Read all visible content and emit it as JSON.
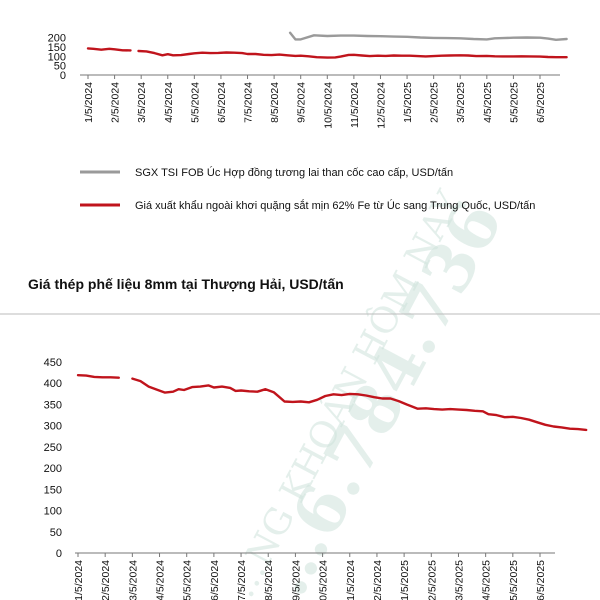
{
  "watermark": {
    "text1": "…NG KHOÁN HÔM NAY",
    "text2": "…6.784.736"
  },
  "chart_data": [
    {
      "type": "line",
      "title": "",
      "x_tick_labels": [
        "1/5/2024",
        "2/5/2024",
        "3/5/2024",
        "4/5/2024",
        "5/5/2024",
        "6/5/2024",
        "7/5/2024",
        "8/5/2024",
        "9/5/2024",
        "10/5/2024",
        "11/5/2024",
        "12/5/2024",
        "1/5/2025",
        "2/5/2025",
        "3/5/2025",
        "4/5/2025",
        "5/5/2025",
        "6/5/2025"
      ],
      "y_ticks": [
        "0",
        "50",
        "100",
        "150",
        "200"
      ],
      "ylim": [
        0,
        250
      ],
      "legend_position": "bottom",
      "series": [
        {
          "name": "SGX TSI FOB Úc Hợp đồng tương lai than cốc cao cấp, USD/tấn",
          "color": "#9a9a9a",
          "segments": [
            [
              [
                7.6,
                225
              ],
              [
                7.8,
                190
              ],
              [
                8.0,
                190
              ],
              [
                8.5,
                212
              ],
              [
                9.0,
                208
              ],
              [
                9.5,
                210
              ],
              [
                10,
                210
              ],
              [
                10.5,
                208
              ],
              [
                11,
                207
              ],
              [
                11.5,
                205
              ],
              [
                12,
                204
              ],
              [
                12.5,
                200
              ],
              [
                13,
                198
              ],
              [
                13.5,
                197
              ],
              [
                14,
                196
              ],
              [
                14.5,
                192
              ],
              [
                15,
                190
              ],
              [
                15.3,
                196
              ],
              [
                15.6,
                197
              ],
              [
                16,
                199
              ],
              [
                16.5,
                200
              ],
              [
                17,
                199
              ],
              [
                17.3,
                194
              ],
              [
                17.6,
                188
              ],
              [
                18,
                192
              ]
            ]
          ]
        },
        {
          "name": "Giá xuất khẩu ngoài khơi quặng sắt mịn 62% Fe từ Úc sang Trung Quốc, USD/tấn",
          "color": "#c0141c",
          "segments": [
            [
              [
                0,
                142
              ],
              [
                0.2,
                140
              ],
              [
                0.5,
                135
              ],
              [
                0.8,
                140
              ],
              [
                1.0,
                137
              ],
              [
                1.3,
                132
              ],
              [
                1.6,
                131
              ]
            ],
            [
              [
                1.9,
                128
              ],
              [
                2.2,
                126
              ],
              [
                2.5,
                117
              ],
              [
                2.8,
                105
              ],
              [
                3.0,
                111
              ],
              [
                3.2,
                105
              ],
              [
                3.5,
                106
              ],
              [
                3.8,
                112
              ],
              [
                4.0,
                116
              ],
              [
                4.3,
                119
              ],
              [
                4.6,
                117
              ],
              [
                4.9,
                118
              ],
              [
                5.2,
                120
              ],
              [
                5.5,
                119
              ],
              [
                5.8,
                117
              ],
              [
                6.0,
                112
              ],
              [
                6.3,
                112
              ],
              [
                6.6,
                108
              ],
              [
                6.9,
                106
              ],
              [
                7.2,
                109
              ],
              [
                7.5,
                105
              ],
              [
                7.8,
                102
              ],
              [
                8.0,
                103
              ],
              [
                8.3,
                100
              ],
              [
                8.6,
                95
              ],
              [
                9.0,
                93
              ],
              [
                9.3,
                94
              ],
              [
                9.5,
                98
              ],
              [
                9.8,
                107
              ],
              [
                10.0,
                108
              ],
              [
                10.3,
                104
              ],
              [
                10.6,
                101
              ],
              [
                10.9,
                103
              ],
              [
                11.2,
                102
              ],
              [
                11.5,
                104
              ],
              [
                11.8,
                103
              ],
              [
                12.1,
                103
              ],
              [
                12.4,
                101
              ],
              [
                12.7,
                99
              ],
              [
                13.0,
                101
              ],
              [
                13.3,
                103
              ],
              [
                13.6,
                104
              ],
              [
                14.0,
                105
              ],
              [
                14.3,
                104
              ],
              [
                14.6,
                101
              ],
              [
                15.0,
                102
              ],
              [
                15.3,
                100
              ],
              [
                15.6,
                99
              ],
              [
                16.0,
                99
              ],
              [
                16.3,
                100
              ],
              [
                16.6,
                99
              ],
              [
                17.0,
                98
              ],
              [
                17.3,
                96
              ],
              [
                17.6,
                95
              ],
              [
                18.0,
                95
              ]
            ]
          ]
        }
      ]
    },
    {
      "type": "line",
      "title": "Giá thép phế liệu 8mm tại Thượng Hải, USD/tấn",
      "x_tick_labels": [
        "1/5/2024",
        "2/5/2024",
        "3/5/2024",
        "4/5/2024",
        "5/5/2024",
        "6/5/2024",
        "7/5/2024",
        "8/5/2024",
        "9/5/2024",
        "10/5/2024",
        "11/5/2024",
        "12/5/2024",
        "1/5/2025",
        "2/5/2025",
        "3/5/2025",
        "4/5/2025",
        "5/5/2025",
        "6/5/2025"
      ],
      "y_ticks": [
        "0",
        "50",
        "100",
        "150",
        "200",
        "250",
        "300",
        "350",
        "400",
        "450"
      ],
      "ylim": [
        0,
        450
      ],
      "series": [
        {
          "name": "",
          "color": "#c0141c",
          "segments": [
            [
              [
                0,
                419
              ],
              [
                0.3,
                418
              ],
              [
                0.6,
                415
              ],
              [
                0.9,
                414
              ],
              [
                1.2,
                414
              ],
              [
                1.5,
                413
              ]
            ],
            [
              [
                2.0,
                411
              ],
              [
                2.3,
                405
              ],
              [
                2.6,
                392
              ],
              [
                2.9,
                385
              ],
              [
                3.2,
                378
              ],
              [
                3.5,
                380
              ],
              [
                3.7,
                386
              ],
              [
                3.9,
                384
              ],
              [
                4.2,
                391
              ],
              [
                4.5,
                392
              ],
              [
                4.8,
                395
              ],
              [
                5.0,
                390
              ],
              [
                5.3,
                392
              ],
              [
                5.6,
                389
              ],
              [
                5.8,
                382
              ],
              [
                6.0,
                383
              ],
              [
                6.3,
                381
              ],
              [
                6.6,
                380
              ],
              [
                6.9,
                386
              ],
              [
                7.2,
                379
              ],
              [
                7.4,
                368
              ],
              [
                7.6,
                357
              ],
              [
                7.9,
                356
              ],
              [
                8.2,
                357
              ],
              [
                8.5,
                355
              ],
              [
                8.8,
                361
              ],
              [
                9.1,
                370
              ],
              [
                9.4,
                374
              ],
              [
                9.7,
                372
              ],
              [
                10.0,
                375
              ],
              [
                10.3,
                374
              ],
              [
                10.6,
                371
              ],
              [
                10.9,
                367
              ],
              [
                11.2,
                364
              ],
              [
                11.5,
                364
              ],
              [
                11.8,
                358
              ],
              [
                12.1,
                350
              ],
              [
                12.3,
                345
              ],
              [
                12.5,
                340
              ],
              [
                12.8,
                341
              ],
              [
                13.1,
                339
              ],
              [
                13.4,
                338
              ],
              [
                13.7,
                339
              ],
              [
                14.0,
                338
              ],
              [
                14.3,
                337
              ],
              [
                14.6,
                335
              ],
              [
                14.9,
                334
              ],
              [
                15.1,
                327
              ],
              [
                15.4,
                325
              ],
              [
                15.7,
                320
              ],
              [
                16.0,
                321
              ],
              [
                16.3,
                318
              ],
              [
                16.6,
                314
              ],
              [
                16.9,
                308
              ],
              [
                17.2,
                302
              ],
              [
                17.5,
                298
              ],
              [
                17.8,
                296
              ],
              [
                18.1,
                293
              ],
              [
                18.4,
                292
              ],
              [
                18.7,
                290
              ]
            ]
          ]
        }
      ]
    }
  ]
}
